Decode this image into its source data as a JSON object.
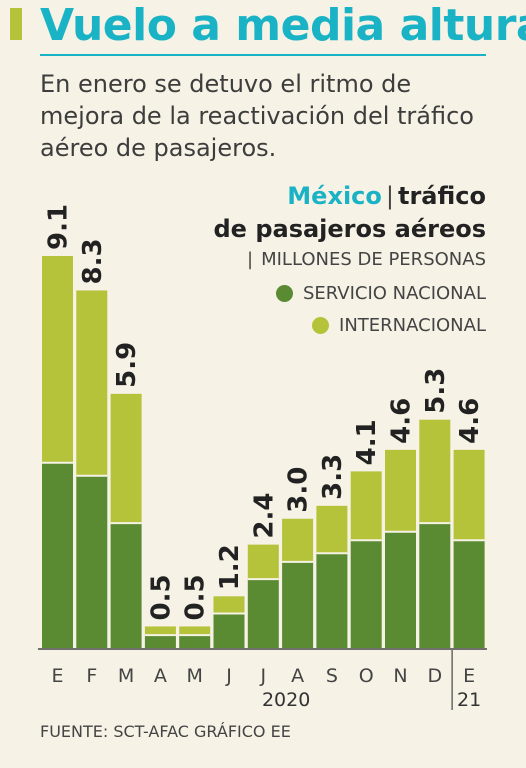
{
  "header": {
    "title": "Vuelo a media altura",
    "subtitle": "En enero se detuvo el ritmo de mejora de la reactivación del tráfico aéreo de pasajeros."
  },
  "colors": {
    "accent": "#1ab3c5",
    "domestic": "#5a8a32",
    "international": "#b4c339",
    "background": "#f6f2e6"
  },
  "chart_data": {
    "type": "bar",
    "stacked": true,
    "title_country": "México",
    "title_separator": "|",
    "title_line1": "tráfico",
    "title_line2": "de pasajeros aéreos",
    "units_separator": "|",
    "units": "MILLONES DE PERSONAS",
    "categories": [
      "E",
      "F",
      "M",
      "A",
      "M",
      "J",
      "J",
      "A",
      "S",
      "O",
      "N",
      "D",
      "E"
    ],
    "year_labels": [
      {
        "label": "2020",
        "category_range": [
          0,
          11
        ]
      },
      {
        "label": "21",
        "category_range": [
          12,
          12
        ]
      }
    ],
    "series": [
      {
        "name": "SERVICIO NACIONAL",
        "values": [
          4.3,
          4.0,
          2.9,
          0.3,
          0.3,
          0.8,
          1.6,
          2.0,
          2.2,
          2.5,
          2.7,
          2.9,
          2.5
        ]
      },
      {
        "name": "INTERNACIONAL",
        "values": [
          4.8,
          4.3,
          3.0,
          0.2,
          0.2,
          0.4,
          0.8,
          1.0,
          1.1,
          1.6,
          1.9,
          2.4,
          2.1
        ]
      }
    ],
    "totals": [
      9.1,
      8.3,
      5.9,
      0.5,
      0.5,
      1.2,
      2.4,
      3.0,
      3.3,
      4.1,
      4.6,
      5.3,
      4.6
    ],
    "total_labels": [
      "9.1",
      "8.3",
      "5.9",
      "0.5",
      "0.5",
      "1.2",
      "2.4",
      "3.0",
      "3.3",
      "4.1",
      "4.6",
      "5.3",
      "4.6"
    ],
    "ylim": [
      0,
      9.1
    ],
    "grid": false,
    "legend_position": "top-right"
  },
  "source": "FUENTE: SCT-AFAC GRÁFICO EE"
}
